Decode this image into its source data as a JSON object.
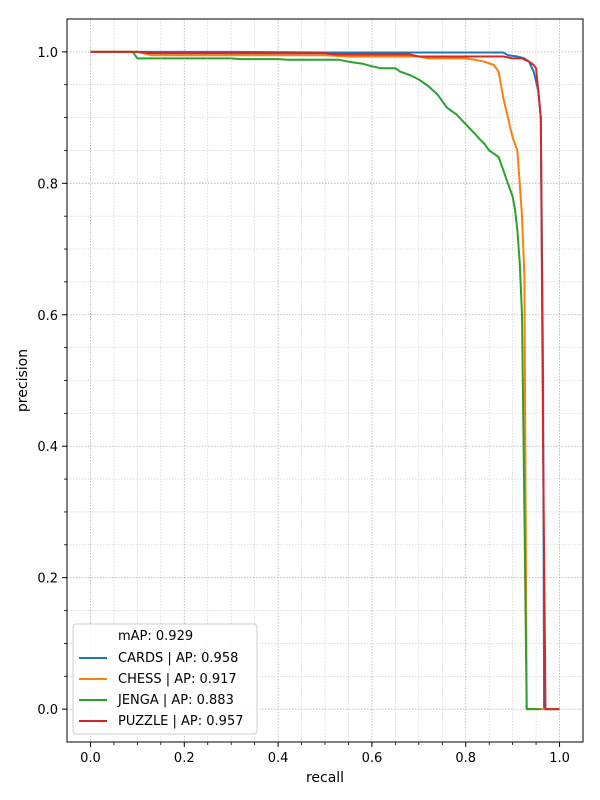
{
  "chart_data": {
    "type": "line",
    "xlabel": "recall",
    "ylabel": "precision",
    "xlim": [
      -0.05,
      1.05
    ],
    "ylim": [
      -0.05,
      1.05
    ],
    "xticks": [
      0.0,
      0.2,
      0.4,
      0.6,
      0.8,
      1.0
    ],
    "xtick_labels": [
      "0.0",
      "0.2",
      "0.4",
      "0.6",
      "0.8",
      "1.0"
    ],
    "yticks": [
      0.0,
      0.2,
      0.4,
      0.6,
      0.8,
      1.0
    ],
    "ytick_labels": [
      "0.0",
      "0.2",
      "0.4",
      "0.6",
      "0.8",
      "1.0"
    ],
    "grid": true,
    "minor_grid": true,
    "legend_position": "bottom-left",
    "legend_title": "mAP: 0.929",
    "series": [
      {
        "name": "CARDS | AP: 0.958",
        "color": "#1f77b4",
        "x": [
          0.0,
          0.1,
          0.3,
          0.5,
          0.6,
          0.7,
          0.8,
          0.88,
          0.89,
          0.91,
          0.925,
          0.935,
          0.945,
          0.955,
          0.96,
          0.965,
          0.967,
          1.0
        ],
        "y": [
          1.0,
          1.0,
          1.0,
          0.999,
          0.999,
          0.999,
          0.999,
          0.999,
          0.995,
          0.993,
          0.99,
          0.985,
          0.97,
          0.94,
          0.9,
          0.5,
          0.0,
          0.0
        ]
      },
      {
        "name": "CHESS | AP: 0.917",
        "color": "#ff7f0e",
        "x": [
          0.0,
          0.1,
          0.13,
          0.3,
          0.5,
          0.55,
          0.65,
          0.7,
          0.72,
          0.8,
          0.82,
          0.84,
          0.86,
          0.87,
          0.88,
          0.89,
          0.9,
          0.91,
          0.915,
          0.92,
          0.925,
          0.93,
          0.94,
          0.97,
          1.0
        ],
        "y": [
          1.0,
          1.0,
          0.995,
          0.995,
          0.995,
          0.993,
          0.993,
          0.993,
          0.99,
          0.99,
          0.988,
          0.985,
          0.98,
          0.97,
          0.93,
          0.9,
          0.87,
          0.85,
          0.8,
          0.75,
          0.66,
          0.0,
          0.0,
          0.0,
          0.0
        ]
      },
      {
        "name": "JENGA | AP: 0.883",
        "color": "#2ca02c",
        "x": [
          0.0,
          0.09,
          0.1,
          0.2,
          0.3,
          0.32,
          0.4,
          0.42,
          0.5,
          0.53,
          0.55,
          0.58,
          0.6,
          0.62,
          0.65,
          0.66,
          0.68,
          0.7,
          0.72,
          0.74,
          0.75,
          0.76,
          0.78,
          0.8,
          0.82,
          0.83,
          0.84,
          0.85,
          0.86,
          0.87,
          0.88,
          0.89,
          0.9,
          0.905,
          0.91,
          0.915,
          0.92,
          0.925,
          0.93,
          0.96
        ],
        "y": [
          1.0,
          1.0,
          0.99,
          0.99,
          0.99,
          0.989,
          0.989,
          0.988,
          0.988,
          0.988,
          0.985,
          0.982,
          0.978,
          0.975,
          0.975,
          0.97,
          0.965,
          0.958,
          0.948,
          0.935,
          0.925,
          0.915,
          0.905,
          0.89,
          0.875,
          0.867,
          0.86,
          0.85,
          0.845,
          0.84,
          0.82,
          0.8,
          0.78,
          0.76,
          0.73,
          0.68,
          0.6,
          0.3,
          0.0,
          0.0
        ]
      },
      {
        "name": "PUZZLE | AP: 0.957",
        "color": "#d62728",
        "x": [
          0.0,
          0.1,
          0.13,
          0.3,
          0.5,
          0.52,
          0.6,
          0.68,
          0.7,
          0.8,
          0.85,
          0.88,
          0.9,
          0.92,
          0.935,
          0.945,
          0.95,
          0.96,
          0.965,
          0.97,
          1.0
        ],
        "y": [
          1.0,
          1.0,
          0.998,
          0.998,
          0.998,
          0.996,
          0.996,
          0.996,
          0.993,
          0.993,
          0.993,
          0.993,
          0.99,
          0.99,
          0.985,
          0.98,
          0.975,
          0.9,
          0.4,
          0.0,
          0.0
        ]
      }
    ]
  }
}
